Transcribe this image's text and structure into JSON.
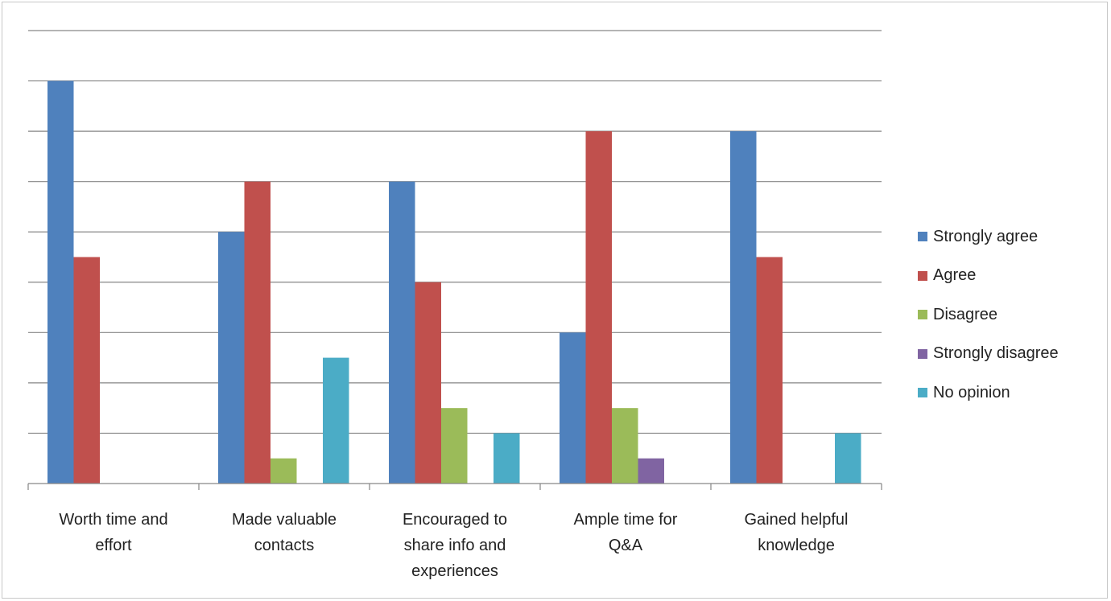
{
  "chart_data": {
    "type": "bar",
    "title": "",
    "xlabel": "",
    "ylabel": "",
    "categories": [
      [
        "Worth time  and",
        "effort"
      ],
      [
        "Made valuable",
        "contacts"
      ],
      [
        "Encouraged to",
        "share info and",
        "experiences"
      ],
      [
        "Ample time  for",
        "Q&A"
      ],
      [
        "Gained helpful",
        "knowledge"
      ]
    ],
    "series": [
      {
        "name": "Strongly agree",
        "color": "#4F81BD",
        "values": [
          8,
          5,
          6,
          3,
          7
        ]
      },
      {
        "name": "Agree",
        "color": "#C0504D",
        "values": [
          4.5,
          6,
          4,
          7,
          4.5
        ]
      },
      {
        "name": "Disagree",
        "color": "#9BBB59",
        "values": [
          0,
          0.5,
          1.5,
          1.5,
          0
        ]
      },
      {
        "name": "Strongly disagree",
        "color": "#8064A2",
        "values": [
          0,
          0,
          0,
          0.5,
          0
        ]
      },
      {
        "name": "No opinion",
        "color": "#4BACC6",
        "values": [
          0,
          2.5,
          1,
          0,
          1
        ]
      }
    ],
    "ylim": [
      0,
      9
    ],
    "y_gridline_step": 1,
    "y_tick_labels_shown": false,
    "grid": true,
    "gridline_color": "#868686",
    "axis_color": "#868686",
    "legend_position": "right"
  }
}
